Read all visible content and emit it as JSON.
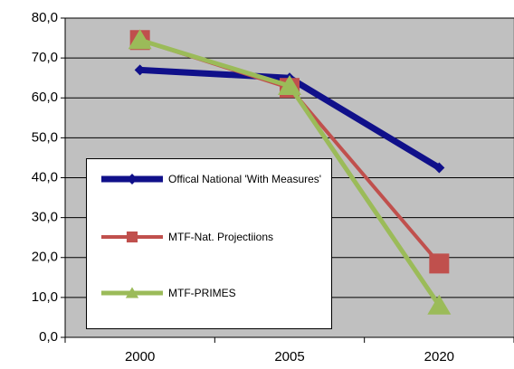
{
  "chart_data": {
    "type": "line",
    "categories": [
      "2000",
      "2005",
      "2020"
    ],
    "series": [
      {
        "name": "Offical National 'With Measures'",
        "color": "#10108a",
        "marker": "diamond",
        "values": [
          67,
          65,
          42.5
        ]
      },
      {
        "name": "MTF-Nat. Projectiions",
        "color": "#c0504d",
        "marker": "square",
        "values": [
          74.5,
          62.5,
          18.5
        ]
      },
      {
        "name": "MTF-PRIMES",
        "color": "#9bbb59",
        "marker": "triangle",
        "values": [
          74.5,
          63,
          8
        ]
      }
    ],
    "ylim": [
      0,
      80
    ],
    "yticks": [
      {
        "value": 0,
        "label": "0,0"
      },
      {
        "value": 10,
        "label": "10,0"
      },
      {
        "value": 20,
        "label": "20,0"
      },
      {
        "value": 30,
        "label": "30,0"
      },
      {
        "value": 40,
        "label": "40,0"
      },
      {
        "value": 50,
        "label": "50,0"
      },
      {
        "value": 60,
        "label": "60,0"
      },
      {
        "value": 70,
        "label": "70,0"
      },
      {
        "value": 80,
        "label": "80,0"
      }
    ],
    "grid": true,
    "legend": "lower-left"
  }
}
